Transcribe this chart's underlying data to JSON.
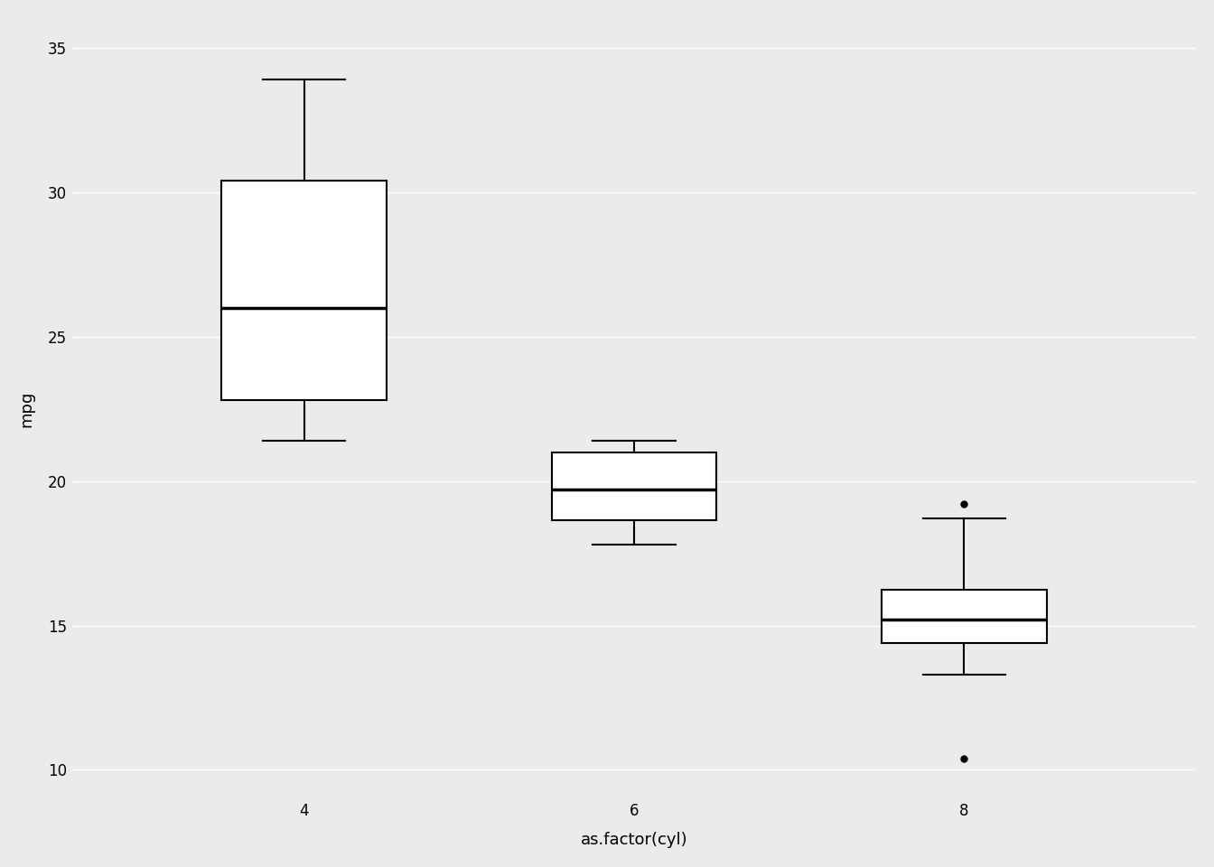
{
  "title": "",
  "xlabel": "as.factor(cyl)",
  "ylabel": "mpg",
  "background_color": "#EBEBEB",
  "grid_color": "#FFFFFF",
  "categories": [
    "4",
    "6",
    "8"
  ],
  "box_stats": {
    "4": {
      "whislo": 21.4,
      "q1": 22.8,
      "med": 26.0,
      "q3": 30.4,
      "whishi": 33.9,
      "fliers": []
    },
    "6": {
      "whislo": 17.8,
      "q1": 18.65,
      "med": 19.7,
      "q3": 21.0,
      "whishi": 21.4,
      "fliers": []
    },
    "8": {
      "whislo": 13.3,
      "q1": 14.4,
      "med": 15.2,
      "q3": 16.25,
      "whishi": 18.7,
      "fliers": [
        10.4,
        19.2
      ]
    }
  },
  "ylim": [
    9.0,
    36.0
  ],
  "yticks": [
    10,
    15,
    20,
    25,
    30,
    35
  ],
  "box_width": 0.5,
  "box_facecolor": "#FFFFFF",
  "box_edgecolor": "#000000",
  "median_color": "#000000",
  "whisker_color": "#000000",
  "cap_color": "#000000",
  "flier_color": "#000000",
  "linewidth": 1.5,
  "median_linewidth": 2.5,
  "title_fontsize": 14,
  "label_fontsize": 13,
  "tick_fontsize": 12
}
